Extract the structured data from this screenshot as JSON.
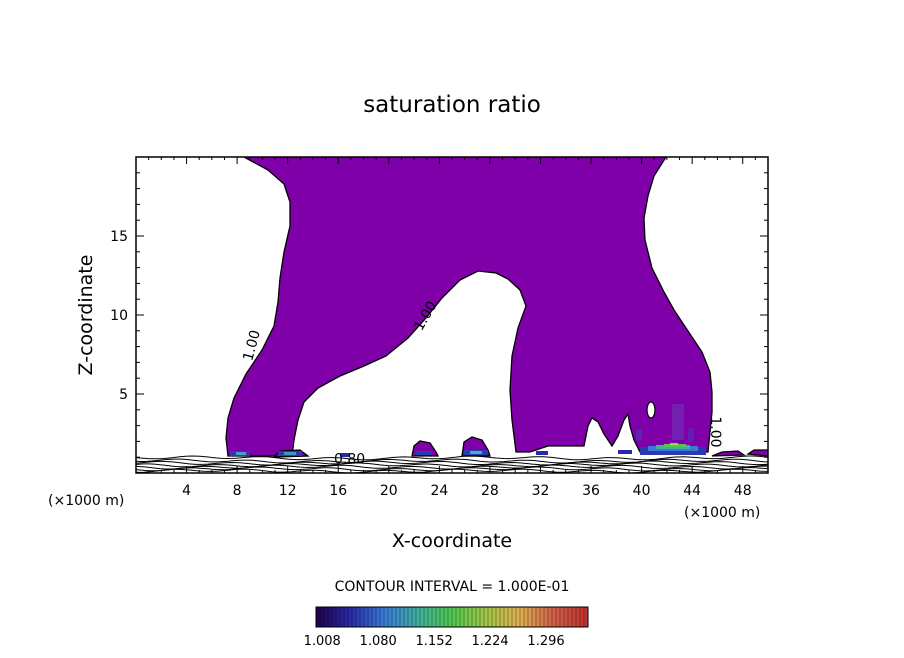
{
  "chart_data": {
    "type": "contour",
    "title": "saturation ratio",
    "xlabel": "X-coordinate",
    "ylabel": "Z-coordinate",
    "x_unit_left": "(×1000 m)",
    "x_unit_right": "(×1000 m)",
    "xlim": [
      0,
      50
    ],
    "ylim": [
      0,
      20
    ],
    "x_ticks": [
      4,
      8,
      12,
      16,
      20,
      24,
      28,
      32,
      36,
      40,
      44,
      48
    ],
    "y_ticks": [
      5,
      10,
      15
    ],
    "contour_interval_text": "CONTOUR INTERVAL = 1.000E-01",
    "contour_labels": [
      {
        "text": "1.00",
        "x": 9.5,
        "z": 8.0,
        "angle": -75
      },
      {
        "text": "1.00",
        "x": 23.2,
        "z": 9.8,
        "angle": -60
      },
      {
        "text": "1.00",
        "x": 45.5,
        "z": 2.6,
        "angle": 90
      },
      {
        "text": "0.80",
        "x": 16.9,
        "z": 0.6,
        "angle": 0
      }
    ],
    "colorbar": {
      "ticks": [
        "1.008",
        "1.080",
        "1.152",
        "1.224",
        "1.296"
      ],
      "min": 1.0,
      "max": 1.35,
      "colors": [
        "#20004a",
        "#2a2aa8",
        "#3a7ad8",
        "#40b0a0",
        "#50c850",
        "#a0c848",
        "#e0b050",
        "#d06048",
        "#c03030"
      ]
    },
    "fill_color": "#7f00a8",
    "grid": false
  }
}
